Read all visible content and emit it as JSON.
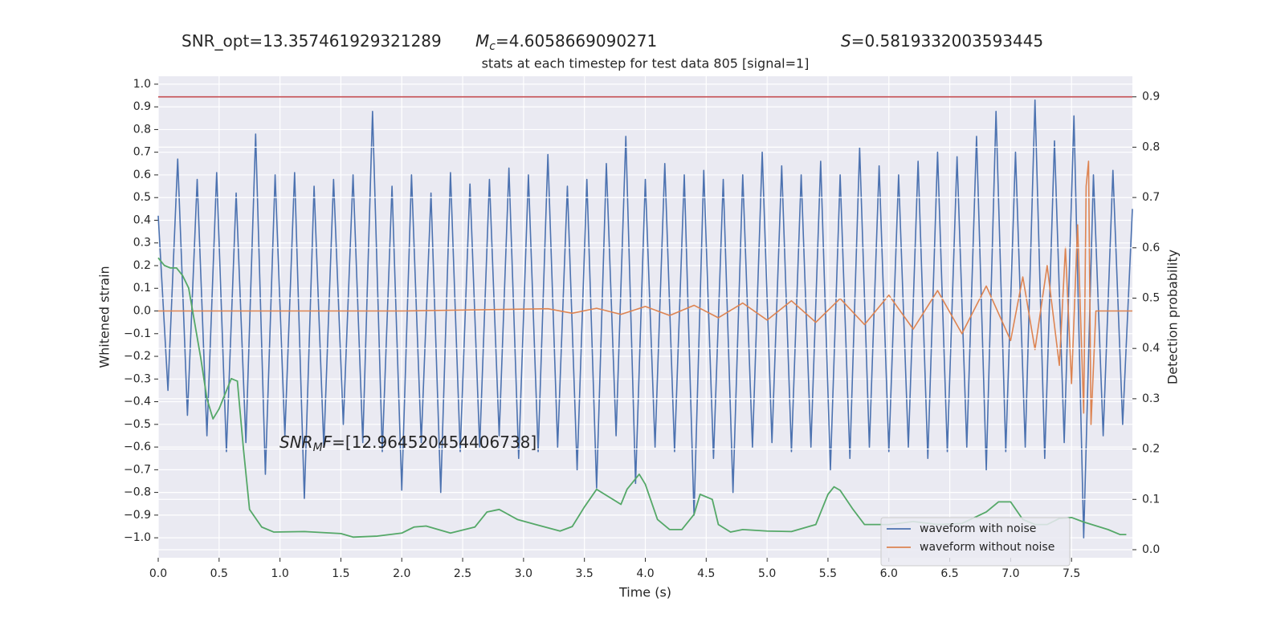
{
  "chart_data": {
    "type": "line",
    "headers": [
      [
        {
          "text": "SNR_opt=13.357461929321289"
        }
      ],
      [
        {
          "text": "M",
          "style": "italic"
        },
        {
          "text": "c",
          "style": "sub"
        },
        {
          "text": "=4.6058669090271"
        }
      ],
      [
        {
          "text": "S",
          "style": "italic"
        },
        {
          "text": "=0.5819332003593445"
        }
      ]
    ],
    "title": "stats at each timestep for test data 805 [signal=1]",
    "annotation": [
      {
        "text": "SNR",
        "style": "italic"
      },
      {
        "text": "M",
        "style": "sub"
      },
      {
        "text": "F",
        "style": "italic"
      },
      {
        "text": "=[12.964520454406738]"
      }
    ],
    "xlabel": "Time (s)",
    "ylabel": "Whitened strain",
    "y2label": "Detection probability",
    "xlim": [
      0,
      8
    ],
    "ylim": [
      -1.088,
      1.035
    ],
    "y2lim": [
      -0.016,
      0.941
    ],
    "xticks": [
      {
        "value": 0,
        "label": "0.0"
      },
      0.5,
      {
        "value": 1,
        "label": "1.0"
      },
      1.5,
      {
        "value": 2,
        "label": "2.0"
      },
      2.5,
      {
        "value": 3,
        "label": "3.0"
      },
      3.5,
      {
        "value": 4,
        "label": "4.0"
      },
      4.5,
      {
        "value": 5,
        "label": "5.0"
      },
      5.5,
      {
        "value": 6,
        "label": "6.0"
      },
      6.5,
      {
        "value": 7,
        "label": "7.0"
      },
      7.5
    ],
    "yticks": [
      {
        "value": 1,
        "label": "1.0"
      },
      0.9,
      0.8,
      0.7,
      0.6,
      0.5,
      0.4,
      0.3,
      0.2,
      0.1,
      {
        "value": 0,
        "label": "0.0"
      },
      {
        "value": -0.1,
        "label": "−0.1"
      },
      {
        "value": -0.2,
        "label": "−0.2"
      },
      {
        "value": -0.3,
        "label": "−0.3"
      },
      {
        "value": -0.4,
        "label": "−0.4"
      },
      {
        "value": -0.5,
        "label": "−0.5"
      },
      {
        "value": -0.6,
        "label": "−0.6"
      },
      {
        "value": -0.7,
        "label": "−0.7"
      },
      {
        "value": -0.8,
        "label": "−0.8"
      },
      {
        "value": -0.9,
        "label": "−0.9"
      },
      {
        "value": -1,
        "label": "−1.0"
      }
    ],
    "y2ticks": [
      0.9,
      0.8,
      0.7,
      0.6,
      0.5,
      0.4,
      0.3,
      0.2,
      0.1,
      {
        "value": 0,
        "label": "0.0"
      }
    ],
    "grid": true,
    "legend": "lower right",
    "hlines": [
      {
        "value": 0.9,
        "axis": "y2",
        "color": "#c44e52"
      }
    ],
    "series": [
      {
        "name": "waveform with noise",
        "color": "#4c72b0",
        "x": [
          0,
          0.08,
          0.16,
          0.24,
          0.32,
          0.4,
          0.48,
          0.56,
          0.64,
          0.72,
          0.8,
          0.88,
          0.96,
          1.04,
          1.12,
          1.2,
          1.28,
          1.36,
          1.44,
          1.52,
          1.6,
          1.68,
          1.76,
          1.84,
          1.92,
          2,
          2.08,
          2.16,
          2.24,
          2.32,
          2.4,
          2.48,
          2.56,
          2.64,
          2.72,
          2.8,
          2.88,
          2.96,
          3.04,
          3.12,
          3.2,
          3.28,
          3.36,
          3.44,
          3.52,
          3.6,
          3.68,
          3.76,
          3.84,
          3.92,
          4,
          4.08,
          4.16,
          4.24,
          4.32,
          4.4,
          4.48,
          4.56,
          4.64,
          4.72,
          4.8,
          4.88,
          4.96,
          5.04,
          5.12,
          5.2,
          5.28,
          5.36,
          5.44,
          5.52,
          5.6,
          5.68,
          5.76,
          5.84,
          5.92,
          6,
          6.08,
          6.16,
          6.24,
          6.32,
          6.4,
          6.48,
          6.56,
          6.64,
          6.72,
          6.8,
          6.88,
          6.96,
          7.04,
          7.12,
          7.2,
          7.28,
          7.36,
          7.44,
          7.52,
          7.6,
          7.68,
          7.76,
          7.84,
          7.92,
          8
        ],
        "values": [
          0.42,
          -0.35,
          0.67,
          -0.46,
          0.58,
          -0.55,
          0.61,
          -0.62,
          0.52,
          -0.58,
          0.78,
          -0.72,
          0.6,
          -0.55,
          0.61,
          -0.83,
          0.55,
          -0.6,
          0.58,
          -0.5,
          0.6,
          -0.58,
          0.88,
          -0.62,
          0.55,
          -0.79,
          0.6,
          -0.58,
          0.52,
          -0.8,
          0.61,
          -0.62,
          0.56,
          -0.6,
          0.58,
          -0.55,
          0.63,
          -0.65,
          0.6,
          -0.62,
          0.69,
          -0.6,
          0.55,
          -0.7,
          0.58,
          -0.78,
          0.65,
          -0.55,
          0.77,
          -0.76,
          0.58,
          -0.6,
          0.65,
          -0.62,
          0.6,
          -0.9,
          0.62,
          -0.65,
          0.58,
          -0.8,
          0.6,
          -0.6,
          0.7,
          -0.58,
          0.64,
          -0.62,
          0.6,
          -0.6,
          0.66,
          -0.7,
          0.6,
          -0.65,
          0.72,
          -0.6,
          0.64,
          -0.62,
          0.6,
          -0.6,
          0.66,
          -0.65,
          0.7,
          -0.62,
          0.68,
          -0.6,
          0.77,
          -0.7,
          0.88,
          -0.62,
          0.7,
          -0.6,
          0.93,
          -0.65,
          0.75,
          -0.58,
          0.86,
          -1.0,
          0.6,
          -0.55,
          0.62,
          -0.5,
          0.45
        ]
      },
      {
        "name": "waveform without noise",
        "color": "#dd8452",
        "x": [
          0,
          2,
          3.2,
          3.4,
          3.6,
          3.8,
          4.0,
          4.2,
          4.4,
          4.6,
          4.8,
          5.0,
          5.2,
          5.4,
          5.6,
          5.8,
          6.0,
          6.2,
          6.4,
          6.6,
          6.8,
          7.0,
          7.1,
          7.2,
          7.3,
          7.4,
          7.45,
          7.5,
          7.55,
          7.6,
          7.62,
          7.64,
          7.66,
          7.7,
          8.0
        ],
        "values": [
          0,
          0,
          0.01,
          -0.01,
          0.012,
          -0.015,
          0.02,
          -0.02,
          0.025,
          -0.03,
          0.035,
          -0.04,
          0.045,
          -0.05,
          0.055,
          -0.06,
          0.07,
          -0.08,
          0.09,
          -0.1,
          0.11,
          -0.13,
          0.15,
          -0.17,
          0.2,
          -0.24,
          0.28,
          -0.32,
          0.38,
          -0.45,
          0.55,
          0.66,
          -0.5,
          0,
          0
        ]
      },
      {
        "color": "#55a868",
        "axis": "y2",
        "x": [
          0,
          0.05,
          0.1,
          0.15,
          0.2,
          0.25,
          0.3,
          0.35,
          0.4,
          0.45,
          0.5,
          0.55,
          0.6,
          0.65,
          0.7,
          0.75,
          0.85,
          0.95,
          1.2,
          1.5,
          1.6,
          1.8,
          2.0,
          2.1,
          2.2,
          2.4,
          2.6,
          2.7,
          2.8,
          2.95,
          3.1,
          3.3,
          3.4,
          3.5,
          3.6,
          3.7,
          3.8,
          3.85,
          3.95,
          4.0,
          4.1,
          4.2,
          4.3,
          4.4,
          4.45,
          4.55,
          4.6,
          4.7,
          4.8,
          5.0,
          5.2,
          5.4,
          5.5,
          5.55,
          5.6,
          5.7,
          5.8,
          6.0,
          6.2,
          6.4,
          6.6,
          6.8,
          6.9,
          7.0,
          7.1,
          7.2,
          7.3,
          7.4,
          7.5,
          7.6,
          7.8,
          7.9,
          7.95
        ],
        "values": [
          0.58,
          0.565,
          0.56,
          0.56,
          0.545,
          0.52,
          0.45,
          0.38,
          0.3,
          0.26,
          0.28,
          0.31,
          0.34,
          0.335,
          0.2,
          0.08,
          0.045,
          0.035,
          0.036,
          0.032,
          0.025,
          0.027,
          0.033,
          0.045,
          0.047,
          0.033,
          0.045,
          0.075,
          0.08,
          0.06,
          0.05,
          0.037,
          0.046,
          0.085,
          0.12,
          0.105,
          0.09,
          0.12,
          0.15,
          0.13,
          0.06,
          0.04,
          0.04,
          0.07,
          0.11,
          0.1,
          0.05,
          0.035,
          0.04,
          0.037,
          0.036,
          0.05,
          0.11,
          0.125,
          0.118,
          0.082,
          0.05,
          0.05,
          0.056,
          0.05,
          0.052,
          0.075,
          0.095,
          0.095,
          0.06,
          0.05,
          0.05,
          0.062,
          0.064,
          0.055,
          0.04,
          0.03,
          0.03
        ]
      }
    ]
  }
}
